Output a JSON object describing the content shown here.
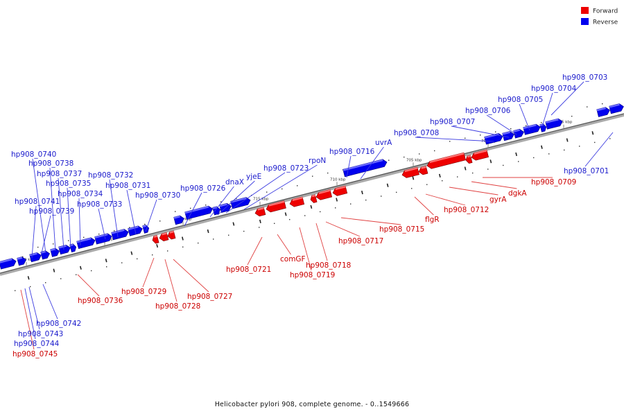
{
  "legend": [
    {
      "label": "Forward",
      "color": "#ee0000"
    },
    {
      "label": "Reverse",
      "color": "#0000ee"
    }
  ],
  "caption": "Helicobacter pylori 908, complete genome. - 0..1549666",
  "ticks": [
    "730 kbp",
    "725 kbp",
    "720 kbp",
    "715 kbp",
    "710 kbp",
    "705 kbp",
    "700 kbp",
    "695 kbp"
  ],
  "genes": [
    {
      "name": "hp908_0703",
      "strand": "reverse"
    },
    {
      "name": "hp908_0704",
      "strand": "reverse"
    },
    {
      "name": "hp908_0705",
      "strand": "reverse"
    },
    {
      "name": "hp908_0706",
      "strand": "reverse"
    },
    {
      "name": "hp908_0707",
      "strand": "reverse"
    },
    {
      "name": "hp908_0708",
      "strand": "reverse"
    },
    {
      "name": "hp908_0701",
      "strand": "reverse"
    },
    {
      "name": "uvrA",
      "strand": "reverse"
    },
    {
      "name": "hp908_0716",
      "strand": "reverse"
    },
    {
      "name": "rpoN",
      "strand": "reverse"
    },
    {
      "name": "hp908_0723",
      "strand": "reverse"
    },
    {
      "name": "yjeE",
      "strand": "reverse"
    },
    {
      "name": "dnaX",
      "strand": "reverse"
    },
    {
      "name": "hp908_0726",
      "strand": "reverse"
    },
    {
      "name": "hp908_0730",
      "strand": "reverse"
    },
    {
      "name": "hp908_0731",
      "strand": "reverse"
    },
    {
      "name": "hp908_0732",
      "strand": "reverse"
    },
    {
      "name": "hp908_0733",
      "strand": "reverse"
    },
    {
      "name": "hp908_0734",
      "strand": "reverse"
    },
    {
      "name": "hp908_0735",
      "strand": "reverse"
    },
    {
      "name": "hp908_0737",
      "strand": "reverse"
    },
    {
      "name": "hp908_0738",
      "strand": "reverse"
    },
    {
      "name": "hp908_0740",
      "strand": "reverse"
    },
    {
      "name": "hp908_0741",
      "strand": "reverse"
    },
    {
      "name": "hp908_0739",
      "strand": "reverse"
    },
    {
      "name": "hp908_0742",
      "strand": "reverse"
    },
    {
      "name": "hp908_0743",
      "strand": "reverse"
    },
    {
      "name": "hp908_0744",
      "strand": "reverse"
    },
    {
      "name": "hp908_0745",
      "strand": "forward"
    },
    {
      "name": "hp908_0736",
      "strand": "forward"
    },
    {
      "name": "hp908_0729",
      "strand": "forward"
    },
    {
      "name": "hp908_0728",
      "strand": "forward"
    },
    {
      "name": "hp908_0727",
      "strand": "forward"
    },
    {
      "name": "hp908_0721",
      "strand": "forward"
    },
    {
      "name": "comGF",
      "strand": "forward"
    },
    {
      "name": "hp908_0718",
      "strand": "forward"
    },
    {
      "name": "hp908_0719",
      "strand": "forward"
    },
    {
      "name": "hp908_0717",
      "strand": "forward"
    },
    {
      "name": "hp908_0715",
      "strand": "forward"
    },
    {
      "name": "flgR",
      "strand": "forward"
    },
    {
      "name": "hp908_0712",
      "strand": "forward"
    },
    {
      "name": "gyrA",
      "strand": "forward"
    },
    {
      "name": "dgkA",
      "strand": "forward"
    },
    {
      "name": "hp908_0709",
      "strand": "forward"
    }
  ]
}
